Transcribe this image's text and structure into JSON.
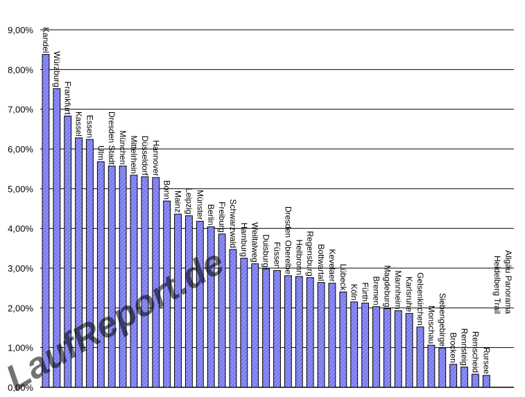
{
  "chart_data": {
    "type": "bar",
    "title": "",
    "xlabel": "",
    "ylabel": "",
    "ylim": [
      0,
      0.09
    ],
    "y_tick_values": [
      0,
      0.01,
      0.02,
      0.03,
      0.04,
      0.05,
      0.06,
      0.07,
      0.08,
      0.09
    ],
    "y_tick_labels": [
      "0,00%",
      "1,00%",
      "2,00%",
      "3,00%",
      "4,00%",
      "5,00%",
      "6,00%",
      "7,00%",
      "8,00%",
      "9,00%"
    ],
    "grid": true,
    "bar_color": "#7b7bef",
    "categories": [
      "Kandel",
      "Würzburg",
      "Frankfurt",
      "Kassel",
      "Essen",
      "Ulm",
      "Dresden Stadt",
      "München",
      "Mittelrhein",
      "Düsseldorf",
      "Hannover",
      "Bonn",
      "Mainz",
      "Leipzig",
      "Münster",
      "Berlin",
      "Freiburg",
      "Schwarzwald",
      "Hamburg",
      "Weiltalweg",
      "Duisburg",
      "Füssen",
      "Dresden Oberelbe",
      "Heilbronn",
      "Regensburg",
      "Bottwartal",
      "Kevelaer",
      "Lübeck",
      "Köln",
      "Fürth",
      "Bremen",
      "Magdeburg",
      "Mannheim",
      "Karlsruhe",
      "Gelsenkirchen",
      "Monschau",
      "Siebengebirge",
      "Brocken",
      "Rennsteig",
      "Remscheid",
      "Rursee",
      "Heidelberg Trail",
      "Allgäu Panorama"
    ],
    "values": [
      0.0838,
      0.0752,
      0.0683,
      0.0628,
      0.0624,
      0.0568,
      0.0557,
      0.0557,
      0.0534,
      0.053,
      0.0528,
      0.0469,
      0.0436,
      0.0432,
      0.0418,
      0.0404,
      0.0386,
      0.0347,
      0.0325,
      0.0311,
      0.0298,
      0.0294,
      0.0281,
      0.0279,
      0.0276,
      0.0264,
      0.0262,
      0.024,
      0.0215,
      0.0212,
      0.0203,
      0.0198,
      0.0193,
      0.0186,
      0.0152,
      0.0106,
      0.0099,
      0.0058,
      0.0051,
      0.0033,
      0.003,
      0,
      0
    ]
  },
  "watermark": {
    "text": "LaufReport.de"
  }
}
